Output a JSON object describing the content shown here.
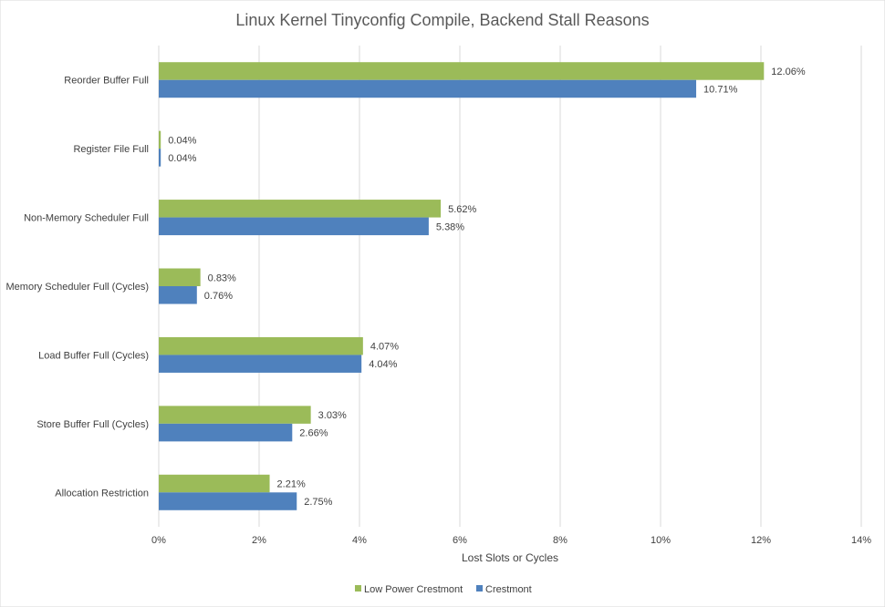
{
  "chart_data": {
    "type": "bar",
    "orientation": "horizontal",
    "title": "Linux Kernel Tinyconfig Compile, Backend Stall Reasons",
    "xlabel": "Lost Slots or Cycles",
    "ylabel": "",
    "xlim": [
      0,
      14
    ],
    "x_ticks": [
      "0%",
      "2%",
      "4%",
      "6%",
      "8%",
      "10%",
      "12%",
      "14%"
    ],
    "grid": true,
    "legend_position": "bottom",
    "categories": [
      "Reorder Buffer Full",
      "Register File Full",
      "Non-Memory Scheduler Full",
      "Memory Scheduler Full (Cycles)",
      "Load Buffer Full (Cycles)",
      "Store Buffer Full (Cycles)",
      "Allocation Restriction"
    ],
    "series": [
      {
        "name": "Low Power Crestmont",
        "color": "#9bbb59",
        "values": [
          12.06,
          0.04,
          5.62,
          0.83,
          4.07,
          3.03,
          2.21
        ],
        "labels": [
          "12.06%",
          "0.04%",
          "5.62%",
          "0.83%",
          "4.07%",
          "3.03%",
          "2.21%"
        ]
      },
      {
        "name": "Crestmont",
        "color": "#4f81bd",
        "values": [
          10.71,
          0.04,
          5.38,
          0.76,
          4.04,
          2.66,
          2.75
        ],
        "labels": [
          "10.71%",
          "0.04%",
          "5.38%",
          "0.76%",
          "4.04%",
          "2.66%",
          "2.75%"
        ]
      }
    ]
  }
}
